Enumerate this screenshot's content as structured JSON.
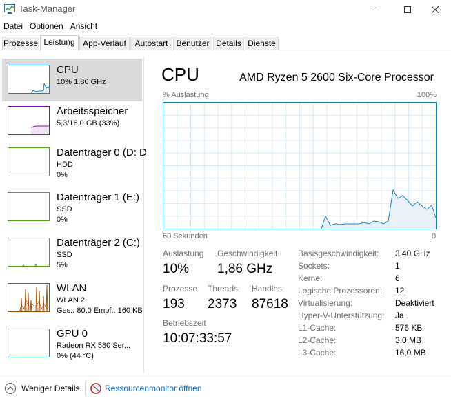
{
  "window": {
    "title": "Task-Manager"
  },
  "menu": [
    "Datei",
    "Optionen",
    "Ansicht"
  ],
  "tabs": [
    "Prozesse",
    "Leistung",
    "App-Verlauf",
    "Autostart",
    "Benutzer",
    "Details",
    "Dienste"
  ],
  "active_tab": "Leistung",
  "sidebar": {
    "items": [
      {
        "title": "CPU",
        "line1": "10% 1,86 GHz",
        "line2": "",
        "color": "#1184c0",
        "selected": true
      },
      {
        "title": "Arbeitsspeicher",
        "line1": "5,3/16,0 GB (33%)",
        "line2": "",
        "color": "#8b12ae",
        "selected": false
      },
      {
        "title": "Datenträger 0 (D: D",
        "line1": "HDD",
        "line2": "0%",
        "color": "#4da60c",
        "selected": false
      },
      {
        "title": "Datenträger 1 (E:)",
        "line1": "SSD",
        "line2": "0%",
        "color": "#4da60c",
        "selected": false
      },
      {
        "title": "Datenträger 2 (C:)",
        "line1": "SSD",
        "line2": "5%",
        "color": "#4da60c",
        "selected": false
      },
      {
        "title": "WLAN",
        "line1": "WLAN 2",
        "line2": "Ges.: 80,0  Empf.: 160 KB",
        "color": "#a74f01",
        "selected": false
      },
      {
        "title": "GPU 0",
        "line1": "Radeon RX 580 Ser...",
        "line2": "0% (44 °C)",
        "color": "#1184c0",
        "selected": false
      }
    ]
  },
  "main": {
    "title": "CPU",
    "processor": "AMD Ryzen 5 2600 Six-Core Processor",
    "graph_label": "% Auslastung",
    "graph_max": "100%",
    "time_left": "60 Sekunden",
    "time_right": "0",
    "stats": {
      "util_label": "Auslastung",
      "util_value": "10%",
      "speed_label": "Geschwindigkeit",
      "speed_value": "1,86 GHz",
      "proc_label": "Prozesse",
      "proc_value": "193",
      "threads_label": "Threads",
      "threads_value": "2373",
      "handles_label": "Handles",
      "handles_value": "87618",
      "uptime_label": "Betriebszeit",
      "uptime_value": "10:07:33:57"
    },
    "specs": [
      {
        "label": "Basisgeschwindigkeit:",
        "value": "3,40 GHz"
      },
      {
        "label": "Sockets:",
        "value": "1"
      },
      {
        "label": "Kerne:",
        "value": "6"
      },
      {
        "label": "Logische Prozessoren:",
        "value": "12"
      },
      {
        "label": "Virtualisierung:",
        "value": "Deaktiviert"
      },
      {
        "label": "Hyper-V-Unterstützung:",
        "value": "Ja"
      },
      {
        "label": "L1-Cache:",
        "value": "576 KB"
      },
      {
        "label": "L2-Cache:",
        "value": "3,0 MB"
      },
      {
        "label": "L3-Cache:",
        "value": "16,0 MB"
      }
    ]
  },
  "footer": {
    "less_details": "Weniger Details",
    "resmon": "Ressourcenmonitor öffnen"
  }
}
